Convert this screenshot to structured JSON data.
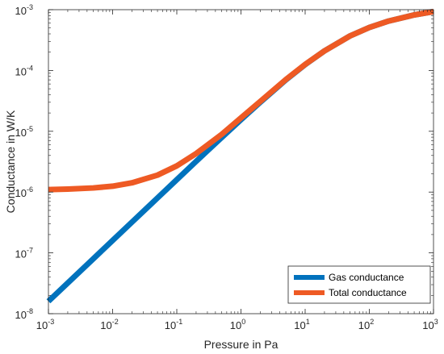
{
  "chart_data": {
    "type": "line",
    "title": "",
    "xlabel": "Pressure in Pa",
    "ylabel": "Conductance in W/K",
    "xscale": "log",
    "yscale": "log",
    "xlim": [
      0.001,
      1000
    ],
    "ylim": [
      1e-08,
      0.001
    ],
    "grid": false,
    "legend": {
      "position": "bottom-right"
    },
    "x_ticks": [
      {
        "base": "10",
        "exp": "-3",
        "value": 0.001
      },
      {
        "base": "10",
        "exp": "-2",
        "value": 0.01
      },
      {
        "base": "10",
        "exp": "-1",
        "value": 0.1
      },
      {
        "base": "10",
        "exp": "0",
        "value": 1
      },
      {
        "base": "10",
        "exp": "1",
        "value": 10
      },
      {
        "base": "10",
        "exp": "2",
        "value": 100
      },
      {
        "base": "10",
        "exp": "3",
        "value": 1000
      }
    ],
    "y_ticks": [
      {
        "base": "10",
        "exp": "-8",
        "value": 1e-08
      },
      {
        "base": "10",
        "exp": "-7",
        "value": 1e-07
      },
      {
        "base": "10",
        "exp": "-6",
        "value": 1e-06
      },
      {
        "base": "10",
        "exp": "-5",
        "value": 1e-05
      },
      {
        "base": "10",
        "exp": "-4",
        "value": 0.0001
      },
      {
        "base": "10",
        "exp": "-3",
        "value": 0.001
      }
    ],
    "series": [
      {
        "name": "Gas conductance",
        "color": "#0072BD",
        "x": [
          0.001,
          0.002,
          0.005,
          0.01,
          0.02,
          0.05,
          0.1,
          0.2,
          0.5,
          1,
          2,
          5,
          10,
          20,
          50,
          100,
          200,
          500,
          1000
        ],
        "y": [
          1.6e-08,
          3.2e-08,
          8e-08,
          1.6e-07,
          3.2e-07,
          8e-07,
          1.6e-06,
          3.2e-06,
          7.9e-06,
          1.55e-05,
          3e-05,
          7e-05,
          0.000125,
          0.00021,
          0.00037,
          0.00051,
          0.00065,
          0.00082,
          0.00093
        ]
      },
      {
        "name": "Total conductance",
        "color": "#EE5A24",
        "x": [
          0.001,
          0.002,
          0.005,
          0.01,
          0.02,
          0.05,
          0.1,
          0.2,
          0.5,
          1,
          2,
          5,
          10,
          20,
          50,
          100,
          200,
          500,
          1000
        ],
        "y": [
          1.1e-06,
          1.12e-06,
          1.17e-06,
          1.25e-06,
          1.42e-06,
          1.9e-06,
          2.7e-06,
          4.3e-06,
          8.9e-06,
          1.66e-05,
          3.1e-05,
          7.1e-05,
          0.000126,
          0.00021,
          0.00037,
          0.00051,
          0.00065,
          0.00082,
          0.00093
        ]
      }
    ]
  }
}
